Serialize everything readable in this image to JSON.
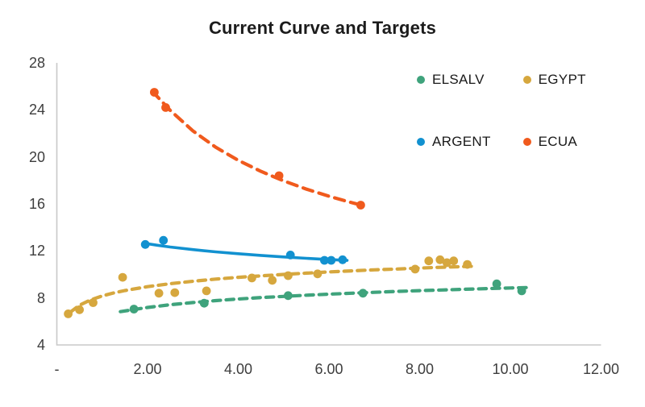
{
  "chart_data": {
    "type": "scatter",
    "title": "Current Curve and Targets",
    "xlabel": "",
    "ylabel": "",
    "xlim": [
      0,
      12
    ],
    "ylim": [
      4,
      28
    ],
    "grid": false,
    "legend_position": "top-right",
    "axis_color": "#c9c9c9",
    "tick_color": "#3d3d3d",
    "title_color": "#1c1c1c",
    "x_ticks": [
      {
        "value": 0,
        "label": "-"
      },
      {
        "value": 2,
        "label": "2.00"
      },
      {
        "value": 4,
        "label": "4.00"
      },
      {
        "value": 6,
        "label": "6.00"
      },
      {
        "value": 8,
        "label": "8.00"
      },
      {
        "value": 10,
        "label": "10.00"
      },
      {
        "value": 12,
        "label": "12.00"
      }
    ],
    "y_ticks": [
      {
        "value": 28,
        "label": "28"
      },
      {
        "value": 24,
        "label": "24"
      },
      {
        "value": 20,
        "label": "20"
      },
      {
        "value": 16,
        "label": "16"
      },
      {
        "value": 12,
        "label": "12"
      },
      {
        "value": 8,
        "label": "8"
      },
      {
        "value": 4,
        "label": "4"
      }
    ],
    "series": [
      {
        "name": "EGYPT",
        "color": "#d6a73e",
        "line_style": "dashed",
        "points": [
          [
            0.25,
            6.65
          ],
          [
            0.5,
            7.0
          ],
          [
            0.8,
            7.6
          ],
          [
            1.45,
            9.75
          ],
          [
            2.25,
            8.4
          ],
          [
            2.6,
            8.45
          ],
          [
            3.3,
            8.6
          ],
          [
            4.3,
            9.7
          ],
          [
            4.75,
            9.5
          ],
          [
            5.1,
            9.9
          ],
          [
            5.75,
            10.05
          ],
          [
            7.9,
            10.45
          ],
          [
            8.2,
            11.15
          ],
          [
            8.45,
            11.25
          ],
          [
            8.6,
            11.0
          ],
          [
            8.75,
            11.15
          ],
          [
            9.05,
            10.85
          ]
        ],
        "trend": [
          [
            0.3,
            6.8
          ],
          [
            0.5,
            7.38
          ],
          [
            0.75,
            7.84
          ],
          [
            1,
            8.17
          ],
          [
            1.25,
            8.42
          ],
          [
            1.5,
            8.63
          ],
          [
            2,
            8.96
          ],
          [
            2.5,
            9.21
          ],
          [
            3,
            9.42
          ],
          [
            3.5,
            9.6
          ],
          [
            4,
            9.75
          ],
          [
            4.5,
            9.88
          ],
          [
            5,
            10.0
          ],
          [
            5.5,
            10.11
          ],
          [
            6,
            10.21
          ],
          [
            6.5,
            10.3
          ],
          [
            7,
            10.39
          ],
          [
            7.5,
            10.46
          ],
          [
            8,
            10.54
          ],
          [
            8.5,
            10.61
          ],
          [
            9,
            10.67
          ],
          [
            9.2,
            10.7
          ]
        ]
      },
      {
        "name": "ELSALV",
        "color": "#3fa37c",
        "line_style": "dashed",
        "points": [
          [
            1.7,
            7.05
          ],
          [
            3.25,
            7.55
          ],
          [
            5.1,
            8.2
          ],
          [
            6.75,
            8.4
          ],
          [
            9.7,
            9.2
          ],
          [
            10.25,
            8.6
          ]
        ],
        "trend": [
          [
            1.4,
            6.83
          ],
          [
            2,
            7.19
          ],
          [
            2.5,
            7.42
          ],
          [
            3,
            7.61
          ],
          [
            3.5,
            7.77
          ],
          [
            4,
            7.91
          ],
          [
            4.5,
            8.03
          ],
          [
            5,
            8.13
          ],
          [
            5.5,
            8.23
          ],
          [
            6,
            8.32
          ],
          [
            6.5,
            8.4
          ],
          [
            7,
            8.48
          ],
          [
            7.5,
            8.55
          ],
          [
            8,
            8.62
          ],
          [
            8.5,
            8.68
          ],
          [
            9,
            8.74
          ],
          [
            9.5,
            8.79
          ],
          [
            10,
            8.85
          ],
          [
            10.45,
            8.89
          ]
        ]
      },
      {
        "name": "ARGENT",
        "color": "#1291d0",
        "line_style": "solid",
        "points": [
          [
            1.95,
            12.55
          ],
          [
            2.35,
            12.9
          ],
          [
            5.15,
            11.65
          ],
          [
            5.9,
            11.2
          ],
          [
            6.05,
            11.2
          ],
          [
            6.3,
            11.25
          ]
        ],
        "trend": [
          [
            1.95,
            12.64
          ],
          [
            2.2,
            12.49
          ],
          [
            2.5,
            12.33
          ],
          [
            3,
            12.11
          ],
          [
            3.5,
            11.92
          ],
          [
            4,
            11.76
          ],
          [
            4.5,
            11.62
          ],
          [
            5,
            11.49
          ],
          [
            5.5,
            11.37
          ],
          [
            6,
            11.26
          ],
          [
            6.4,
            11.19
          ]
        ]
      },
      {
        "name": "ECUA",
        "color": "#f05a1d",
        "line_style": "dashed",
        "points": [
          [
            2.15,
            25.5
          ],
          [
            2.4,
            24.2
          ],
          [
            4.9,
            18.4
          ],
          [
            6.7,
            15.9
          ]
        ],
        "trend": [
          [
            2.1,
            25.6
          ],
          [
            2.5,
            23.96
          ],
          [
            3,
            22.21
          ],
          [
            3.5,
            20.83
          ],
          [
            4,
            19.71
          ],
          [
            4.5,
            18.77
          ],
          [
            5,
            17.96
          ],
          [
            5.5,
            17.26
          ],
          [
            6,
            16.65
          ],
          [
            6.5,
            16.11
          ],
          [
            6.75,
            15.86
          ]
        ]
      }
    ],
    "legend": {
      "items": [
        {
          "name": "ELSALV",
          "color": "#3fa37c"
        },
        {
          "name": "EGYPT",
          "color": "#d6a73e"
        },
        {
          "name": "ARGENT",
          "color": "#1291d0"
        },
        {
          "name": "ECUA",
          "color": "#f05a1d"
        }
      ]
    }
  }
}
